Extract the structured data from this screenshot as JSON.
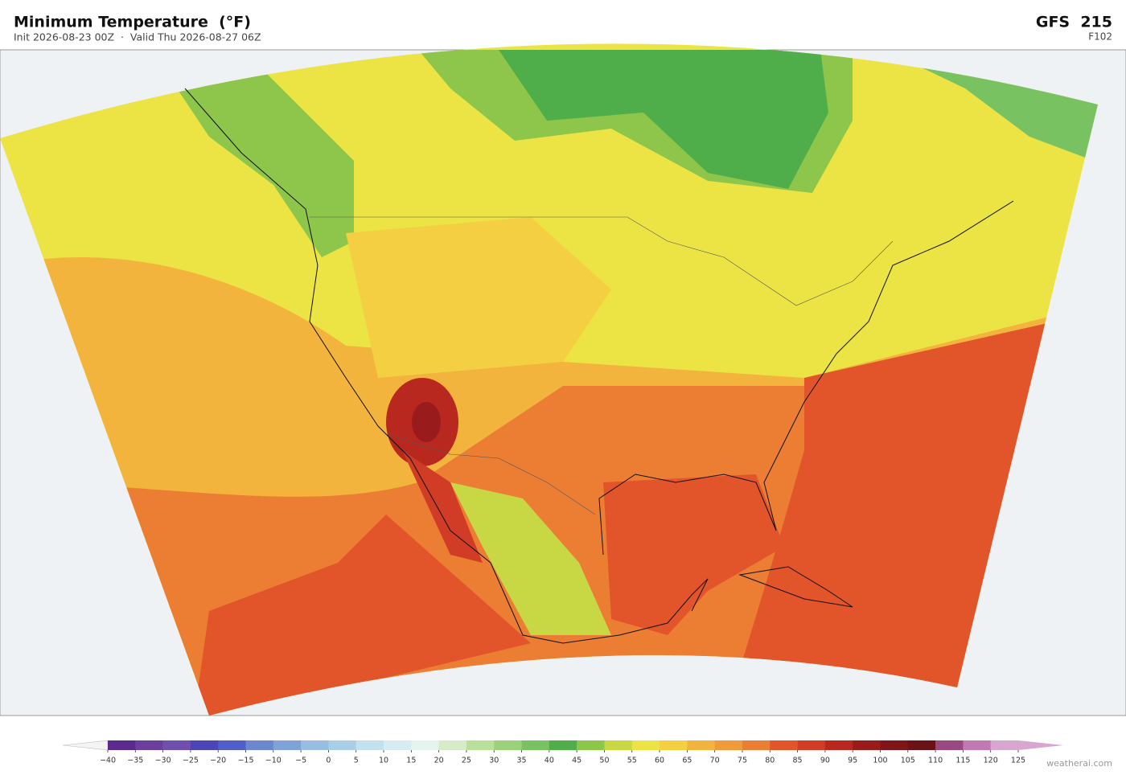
{
  "header": {
    "title": "Minimum Temperature  (°F)",
    "subtitle": "Init 2026-08-23 00Z  ·  Valid Thu 2026-08-27 06Z",
    "model": "GFS  215",
    "forecast_hour": "F102"
  },
  "colorbar": {
    "ticks": [
      {
        "value": -40,
        "label": "−40"
      },
      {
        "value": -35,
        "label": "−35"
      },
      {
        "value": -30,
        "label": "−30"
      },
      {
        "value": -25,
        "label": "−25"
      },
      {
        "value": -20,
        "label": "−20"
      },
      {
        "value": -15,
        "label": "−15"
      },
      {
        "value": -10,
        "label": "−10"
      },
      {
        "value": -5,
        "label": "−5"
      },
      0,
      5,
      10,
      15,
      20,
      25,
      30,
      35,
      40,
      45,
      50,
      55,
      60,
      65,
      70,
      75,
      80,
      85,
      90,
      95,
      100,
      105,
      110,
      115,
      120,
      125
    ],
    "colors": [
      "#5b2a8f",
      "#6b3fa0",
      "#6f4fb0",
      "#4b45b8",
      "#4f5fc8",
      "#6b87d0",
      "#7fa3d8",
      "#97bde0",
      "#a9cfe6",
      "#c1e1ee",
      "#d6ecf0",
      "#e5f3ee",
      "#d8ebc8",
      "#b9e09a",
      "#9ad17a",
      "#79c262",
      "#4fae4a",
      "#8dc64a",
      "#c8d845",
      "#ece444",
      "#f5cf42",
      "#f3b43e",
      "#f09a3a",
      "#ec7e34",
      "#e2542a",
      "#d03c25",
      "#b8281f",
      "#9a1b1b",
      "#801518",
      "#6b1216",
      "#9a4880",
      "#c278b0",
      "#d9a6cf"
    ],
    "under_color": "#f4f4f4",
    "over_color": "#d9a6cf"
  },
  "footer": {
    "credit": "weatherai.com"
  }
}
